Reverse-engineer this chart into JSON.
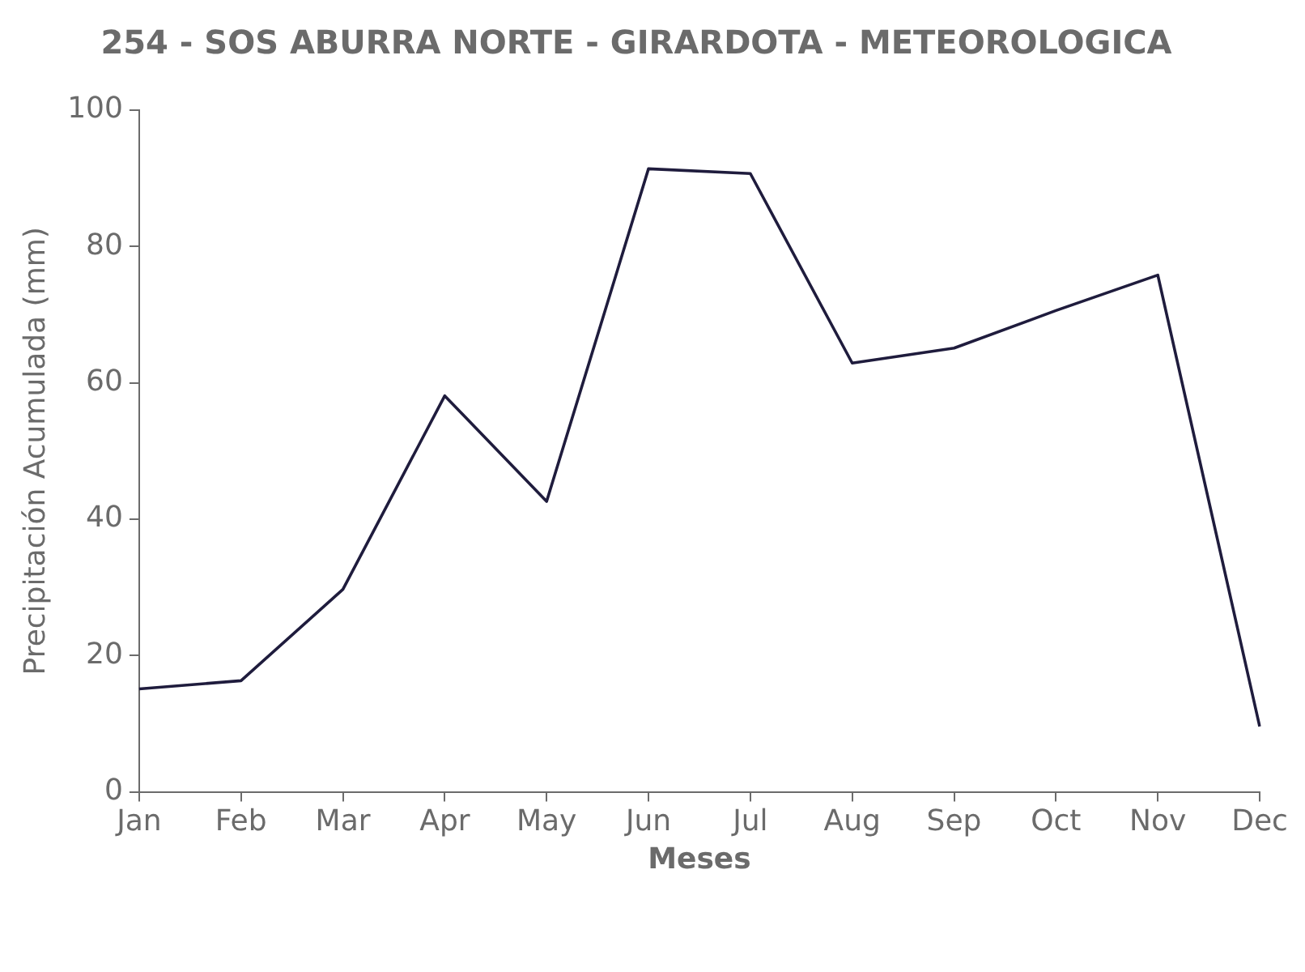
{
  "chart_data": {
    "type": "line",
    "title": "254 - SOS ABURRA NORTE - GIRARDOTA - METEOROLOGICA",
    "xlabel": "Meses",
    "ylabel": "Precipitación Acumulada (mm)",
    "categories": [
      "Jan",
      "Feb",
      "Mar",
      "Apr",
      "May",
      "Jun",
      "Jul",
      "Aug",
      "Sep",
      "Oct",
      "Nov",
      "Dec"
    ],
    "series": [
      {
        "color": "#1f1c3d",
        "values": [
          15.1,
          16.3,
          29.7,
          58.1,
          42.6,
          91.4,
          90.7,
          62.9,
          65.1,
          70.6,
          75.8,
          9.6
        ]
      }
    ],
    "ylim": [
      0,
      100
    ],
    "yticks": [
      0,
      20,
      40,
      60,
      80,
      100
    ]
  }
}
